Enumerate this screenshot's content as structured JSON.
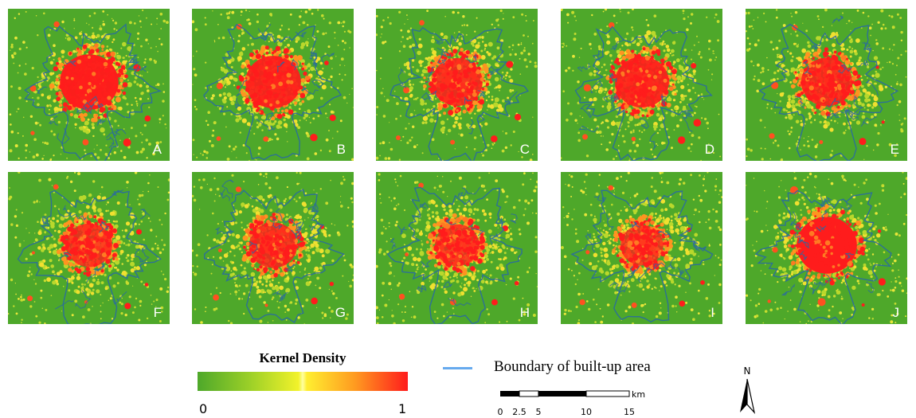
{
  "panels": [
    {
      "label": "A",
      "intensity": 0.95
    },
    {
      "label": "B",
      "intensity": 0.85
    },
    {
      "label": "C",
      "intensity": 0.7
    },
    {
      "label": "D",
      "intensity": 0.8
    },
    {
      "label": "E",
      "intensity": 0.72
    },
    {
      "label": "F",
      "intensity": 0.55
    },
    {
      "label": "G",
      "intensity": 0.62
    },
    {
      "label": "H",
      "intensity": 0.5
    },
    {
      "label": "I",
      "intensity": 0.45
    },
    {
      "label": "J",
      "intensity": 1.0
    }
  ],
  "legend": {
    "title": "Kernel Density",
    "min_label": "0",
    "max_label": "1",
    "colors": [
      "#4ea82a",
      "#c8e230",
      "#ffff40",
      "#ffa020",
      "#ff2020"
    ]
  },
  "boundary_legend": {
    "label": "Boundary of built-up area",
    "color": "#66aaee"
  },
  "scalebar": {
    "ticks": [
      "0",
      "2.5",
      "5",
      "10",
      "15"
    ],
    "unit": "km"
  },
  "north_arrow": {
    "label": "N"
  },
  "colors": {
    "background": "#4ea82a",
    "density_high": "#ff1c1c",
    "density_mid": "#f0e030",
    "boundary": "#2a6aa0",
    "panel_label": "#ffffff"
  }
}
